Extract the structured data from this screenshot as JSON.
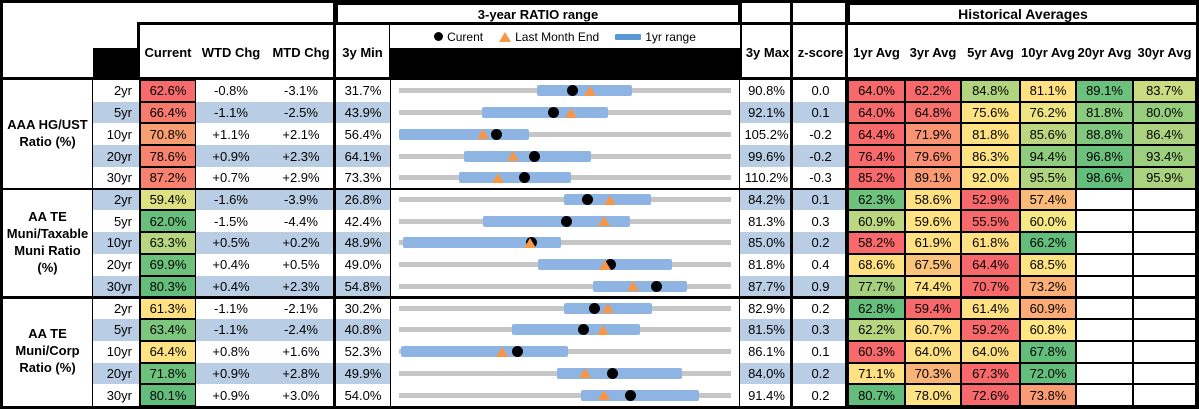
{
  "header": {
    "range_section_title": "3-year RATIO range",
    "averages_section_title": "Historical Averages",
    "columns": {
      "current": "Current",
      "wtd": "WTD Chg",
      "mtd": "MTD Chg",
      "min3y": "3y Min",
      "max3y": "3y Max",
      "zscore": "z-score",
      "avgs": [
        "1yr Avg",
        "3yr Avg",
        "5yr Avg",
        "10yr Avg",
        "20yr Avg",
        "30yr Avg"
      ]
    },
    "legend": {
      "current": "Curent",
      "last_month": "Last Month End",
      "range_1yr": "1yr range"
    }
  },
  "colors": {
    "stripe_blue": "#B9CDE4",
    "bar_blue": "#8EB4E3",
    "track_gray": "#C6C6C6",
    "marker_black": "#000000",
    "triangle_orange": "#F79646"
  },
  "chart_data": {
    "type": "table",
    "title": "3-year RATIO range with Historical Averages",
    "legend": [
      "Curent",
      "Last Month End",
      "1yr range"
    ],
    "groups": [
      {
        "label": "AAA HG/UST\nRatio (%)",
        "rows": [
          {
            "tenor": "2yr",
            "current": "62.6%",
            "current_color": "#F76B6D",
            "wtd_chg": "-0.8%",
            "mtd_chg": "-3.1%",
            "min_3y": "31.7%",
            "max_3y": "90.8%",
            "z_score": "0.0",
            "range_plot": {
              "min": 31.7,
              "max": 90.8,
              "current": 62.6,
              "last_month_end": 65.7,
              "yr1_low": 56.3,
              "yr1_high": 73.2
            },
            "avgs": [
              [
                "64.0%",
                "#F8696B"
              ],
              [
                "62.2%",
                "#F8696B"
              ],
              [
                "84.8%",
                "#B2D47F"
              ],
              [
                "81.1%",
                "#FFE182"
              ],
              [
                "89.1%",
                "#6CC17C"
              ],
              [
                "83.7%",
                "#C9DC81"
              ]
            ]
          },
          {
            "tenor": "5yr",
            "current": "66.4%",
            "current_color": "#F87B70",
            "wtd_chg": "-1.1%",
            "mtd_chg": "-2.5%",
            "min_3y": "43.9%",
            "max_3y": "92.1%",
            "z_score": "0.1",
            "range_plot": {
              "min": 43.9,
              "max": 92.1,
              "current": 66.4,
              "last_month_end": 68.9,
              "yr1_low": 56.0,
              "yr1_high": 74.2
            },
            "avgs": [
              [
                "64.0%",
                "#F8696B"
              ],
              [
                "64.8%",
                "#F8716D"
              ],
              [
                "75.6%",
                "#FFE282"
              ],
              [
                "76.2%",
                "#EFE683"
              ],
              [
                "81.8%",
                "#8BCB7E"
              ],
              [
                "80.0%",
                "#97CE7E"
              ]
            ]
          },
          {
            "tenor": "10yr",
            "current": "70.8%",
            "current_color": "#F99D72",
            "wtd_chg": "+1.1%",
            "mtd_chg": "+2.1%",
            "min_3y": "56.4%",
            "max_3y": "105.2%",
            "z_score": "-0.2",
            "range_plot": {
              "min": 56.4,
              "max": 105.2,
              "current": 70.8,
              "last_month_end": 68.7,
              "yr1_low": 56.4,
              "yr1_high": 75.5
            },
            "avgs": [
              [
                "64.4%",
                "#F8696B"
              ],
              [
                "71.9%",
                "#FA9473"
              ],
              [
                "81.8%",
                "#FFE182"
              ],
              [
                "85.6%",
                "#BCD77F"
              ],
              [
                "88.8%",
                "#7FC87D"
              ],
              [
                "86.4%",
                "#ACD27F"
              ]
            ]
          },
          {
            "tenor": "20yr",
            "current": "78.6%",
            "current_color": "#F8836F",
            "wtd_chg": "+0.9%",
            "mtd_chg": "+2.3%",
            "min_3y": "64.1%",
            "max_3y": "99.6%",
            "z_score": "-0.2",
            "range_plot": {
              "min": 64.1,
              "max": 99.6,
              "current": 78.6,
              "last_month_end": 76.3,
              "yr1_low": 71.1,
              "yr1_high": 84.6
            },
            "avgs": [
              [
                "76.4%",
                "#F8696B"
              ],
              [
                "79.6%",
                "#FA8E72"
              ],
              [
                "86.3%",
                "#FFE383"
              ],
              [
                "94.4%",
                "#90CC7E"
              ],
              [
                "96.8%",
                "#6CC17C"
              ],
              [
                "93.4%",
                "#9CCF7E"
              ]
            ]
          },
          {
            "tenor": "30yr",
            "current": "87.2%",
            "current_color": "#F8826F",
            "wtd_chg": "+0.7%",
            "mtd_chg": "+2.9%",
            "min_3y": "73.3%",
            "max_3y": "110.2%",
            "z_score": "-0.3",
            "range_plot": {
              "min": 73.3,
              "max": 110.2,
              "current": 87.2,
              "last_month_end": 84.3,
              "yr1_low": 80.0,
              "yr1_high": 92.4
            },
            "avgs": [
              [
                "85.2%",
                "#F8696B"
              ],
              [
                "89.1%",
                "#FA9B73"
              ],
              [
                "92.0%",
                "#FFE584"
              ],
              [
                "95.5%",
                "#B2D47F"
              ],
              [
                "98.6%",
                "#63BE7B"
              ],
              [
                "95.9%",
                "#ABD27F"
              ]
            ]
          }
        ]
      },
      {
        "label": "AA TE\nMuni/Taxable\nMuni Ratio\n(%)",
        "rows": [
          {
            "tenor": "2yr",
            "current": "59.4%",
            "current_color": "#DDE182",
            "wtd_chg": "-1.6%",
            "mtd_chg": "-3.9%",
            "min_3y": "26.8%",
            "max_3y": "84.2%",
            "z_score": "0.1",
            "range_plot": {
              "min": 26.8,
              "max": 84.2,
              "current": 59.4,
              "last_month_end": 63.3,
              "yr1_low": 55.3,
              "yr1_high": 70.3
            },
            "avgs": [
              [
                "62.3%",
                "#6DC27C"
              ],
              [
                "58.6%",
                "#FFE082"
              ],
              [
                "52.9%",
                "#F8696B"
              ],
              [
                "57.4%",
                "#FBBA79"
              ],
              [
                "",
                ""
              ],
              [
                "",
                ""
              ]
            ]
          },
          {
            "tenor": "5yr",
            "current": "62.0%",
            "current_color": "#68C07C",
            "wtd_chg": "-1.5%",
            "mtd_chg": "-4.4%",
            "min_3y": "42.4%",
            "max_3y": "81.3%",
            "z_score": "0.3",
            "range_plot": {
              "min": 42.4,
              "max": 81.3,
              "current": 62.0,
              "last_month_end": 66.4,
              "yr1_low": 52.2,
              "yr1_high": 69.5
            },
            "avgs": [
              [
                "60.9%",
                "#BCD77F"
              ],
              [
                "59.6%",
                "#FFE383"
              ],
              [
                "55.5%",
                "#F8696B"
              ],
              [
                "60.0%",
                "#F6E883"
              ],
              [
                "",
                ""
              ],
              [
                "",
                ""
              ]
            ]
          },
          {
            "tenor": "10yr",
            "current": "63.3%",
            "current_color": "#B7D67F",
            "wtd_chg": "+0.5%",
            "mtd_chg": "+0.2%",
            "min_3y": "48.9%",
            "max_3y": "85.0%",
            "z_score": "0.2",
            "range_plot": {
              "min": 48.9,
              "max": 85.0,
              "current": 63.3,
              "last_month_end": 63.1,
              "yr1_low": 49.3,
              "yr1_high": 66.5
            },
            "avgs": [
              [
                "58.2%",
                "#F8696B"
              ],
              [
                "61.9%",
                "#FFE182"
              ],
              [
                "61.8%",
                "#FFE082"
              ],
              [
                "66.2%",
                "#63BE7B"
              ],
              [
                "",
                ""
              ],
              [
                "",
                ""
              ]
            ]
          },
          {
            "tenor": "20yr",
            "current": "69.9%",
            "current_color": "#6EC37C",
            "wtd_chg": "+0.4%",
            "mtd_chg": "+0.5%",
            "min_3y": "49.0%",
            "max_3y": "81.8%",
            "z_score": "0.4",
            "range_plot": {
              "min": 49.0,
              "max": 81.8,
              "current": 69.9,
              "last_month_end": 69.4,
              "yr1_low": 62.7,
              "yr1_high": 76.0
            },
            "avgs": [
              [
                "68.6%",
                "#FFE182"
              ],
              [
                "67.5%",
                "#FCC47B"
              ],
              [
                "64.4%",
                "#F8696B"
              ],
              [
                "68.5%",
                "#FFE383"
              ],
              [
                "",
                ""
              ],
              [
                "",
                ""
              ]
            ]
          },
          {
            "tenor": "30yr",
            "current": "80.3%",
            "current_color": "#63BE7B",
            "wtd_chg": "+0.4%",
            "mtd_chg": "+2.3%",
            "min_3y": "54.8%",
            "max_3y": "87.7%",
            "z_score": "0.9",
            "range_plot": {
              "min": 54.8,
              "max": 87.7,
              "current": 80.3,
              "last_month_end": 78.0,
              "yr1_low": 74.0,
              "yr1_high": 83.3
            },
            "avgs": [
              [
                "77.7%",
                "#A5D17E"
              ],
              [
                "74.4%",
                "#FFE383"
              ],
              [
                "70.7%",
                "#F8696B"
              ],
              [
                "73.2%",
                "#FCAF77"
              ],
              [
                "",
                ""
              ],
              [
                "",
                ""
              ]
            ]
          }
        ]
      },
      {
        "label": "AA TE\nMuni/Corp\nRatio (%)",
        "rows": [
          {
            "tenor": "2yr",
            "current": "61.3%",
            "current_color": "#FFE182",
            "wtd_chg": "-1.1%",
            "mtd_chg": "-2.1%",
            "min_3y": "30.2%",
            "max_3y": "82.9%",
            "z_score": "0.2",
            "range_plot": {
              "min": 30.2,
              "max": 82.9,
              "current": 61.3,
              "last_month_end": 63.4,
              "yr1_low": 56.4,
              "yr1_high": 70.4
            },
            "avgs": [
              [
                "62.8%",
                "#66BF7B"
              ],
              [
                "59.4%",
                "#F8696B"
              ],
              [
                "61.4%",
                "#FFE082"
              ],
              [
                "60.9%",
                "#FBAC76"
              ],
              [
                "",
                ""
              ],
              [
                "",
                ""
              ]
            ]
          },
          {
            "tenor": "5yr",
            "current": "63.4%",
            "current_color": "#7CC77D",
            "wtd_chg": "-1.1%",
            "mtd_chg": "-2.4%",
            "min_3y": "40.8%",
            "max_3y": "81.5%",
            "z_score": "0.3",
            "range_plot": {
              "min": 40.8,
              "max": 81.5,
              "current": 63.4,
              "last_month_end": 65.8,
              "yr1_low": 54.6,
              "yr1_high": 70.3
            },
            "avgs": [
              [
                "62.2%",
                "#B5D57F"
              ],
              [
                "60.7%",
                "#FFE182"
              ],
              [
                "59.2%",
                "#F8696B"
              ],
              [
                "60.8%",
                "#FFE583"
              ],
              [
                "",
                ""
              ],
              [
                "",
                ""
              ]
            ]
          },
          {
            "tenor": "10yr",
            "current": "64.4%",
            "current_color": "#FFE383",
            "wtd_chg": "+0.8%",
            "mtd_chg": "+1.6%",
            "min_3y": "52.3%",
            "max_3y": "86.1%",
            "z_score": "0.1",
            "range_plot": {
              "min": 52.3,
              "max": 86.1,
              "current": 64.4,
              "last_month_end": 62.8,
              "yr1_low": 52.5,
              "yr1_high": 69.5
            },
            "avgs": [
              [
                "60.3%",
                "#F8696B"
              ],
              [
                "64.0%",
                "#FFE082"
              ],
              [
                "64.0%",
                "#FFE082"
              ],
              [
                "67.8%",
                "#63BE7B"
              ],
              [
                "",
                ""
              ],
              [
                "",
                ""
              ]
            ]
          },
          {
            "tenor": "20yr",
            "current": "71.8%",
            "current_color": "#6EC37C",
            "wtd_chg": "+0.9%",
            "mtd_chg": "+2.8%",
            "min_3y": "49.9%",
            "max_3y": "84.0%",
            "z_score": "0.2",
            "range_plot": {
              "min": 49.9,
              "max": 84.0,
              "current": 71.8,
              "last_month_end": 69.0,
              "yr1_low": 66.1,
              "yr1_high": 79.0
            },
            "avgs": [
              [
                "71.1%",
                "#FFE082"
              ],
              [
                "70.3%",
                "#FBB477"
              ],
              [
                "67.3%",
                "#F8696B"
              ],
              [
                "72.0%",
                "#63BE7B"
              ],
              [
                "",
                ""
              ],
              [
                "",
                ""
              ]
            ]
          },
          {
            "tenor": "30yr",
            "current": "80.1%",
            "current_color": "#63BE7B",
            "wtd_chg": "+0.9%",
            "mtd_chg": "+3.0%",
            "min_3y": "54.0%",
            "max_3y": "91.4%",
            "z_score": "0.2",
            "range_plot": {
              "min": 54.0,
              "max": 91.4,
              "current": 80.1,
              "last_month_end": 77.1,
              "yr1_low": 74.5,
              "yr1_high": 87.8
            },
            "avgs": [
              [
                "80.7%",
                "#63BE7B"
              ],
              [
                "78.0%",
                "#FFE283"
              ],
              [
                "72.6%",
                "#F8696B"
              ],
              [
                "73.8%",
                "#FA9B73"
              ],
              [
                "",
                ""
              ],
              [
                "",
                ""
              ]
            ]
          }
        ]
      }
    ]
  }
}
